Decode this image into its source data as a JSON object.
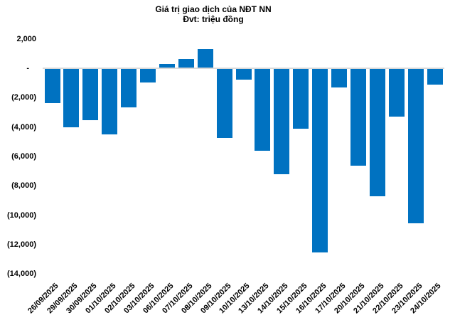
{
  "chart_data": {
    "type": "bar",
    "title": "Giá trị giao dịch của NĐT NN",
    "subtitle": "Đvt: triệu đồng",
    "unit": "triệu đồng",
    "categories": [
      "26/09/2025",
      "29/09/2025",
      "30/09/2025",
      "01/10/2025",
      "02/10/2025",
      "03/10/2025",
      "06/10/2025",
      "07/10/2025",
      "08/10/2025",
      "09/10/2025",
      "10/10/2025",
      "13/10/2025",
      "14/10/2025",
      "15/10/2025",
      "16/10/2025",
      "17/10/2025",
      "20/10/2025",
      "21/10/2025",
      "22/10/2025",
      "23/10/2025",
      "24/10/2025"
    ],
    "values": [
      -2300,
      -3950,
      -3480,
      -4450,
      -2600,
      -930,
      230,
      600,
      1250,
      -4700,
      -730,
      -5550,
      -7150,
      -4050,
      -12500,
      -1250,
      -6600,
      -8650,
      -3250,
      -10500,
      -1050
    ],
    "y_ticks": [
      {
        "value": 2000,
        "label": "2,000"
      },
      {
        "value": 0,
        "label": "-"
      },
      {
        "value": -2000,
        "label": "(2,000)"
      },
      {
        "value": -4000,
        "label": "(4,000)"
      },
      {
        "value": -6000,
        "label": "(6,000)"
      },
      {
        "value": -8000,
        "label": "(8,000)"
      },
      {
        "value": -10000,
        "label": "(10,000)"
      },
      {
        "value": -12000,
        "label": "(12,000)"
      },
      {
        "value": -14000,
        "label": "(14,000)"
      }
    ],
    "ylim": [
      -14000,
      2000
    ],
    "x_tick_rotation": 45,
    "grid": false,
    "legend": "none",
    "bar_color": "#0072C1",
    "zero_line_color": "#D9D9D9",
    "text_color": "#000000",
    "background_color": "#FFFFFF"
  }
}
